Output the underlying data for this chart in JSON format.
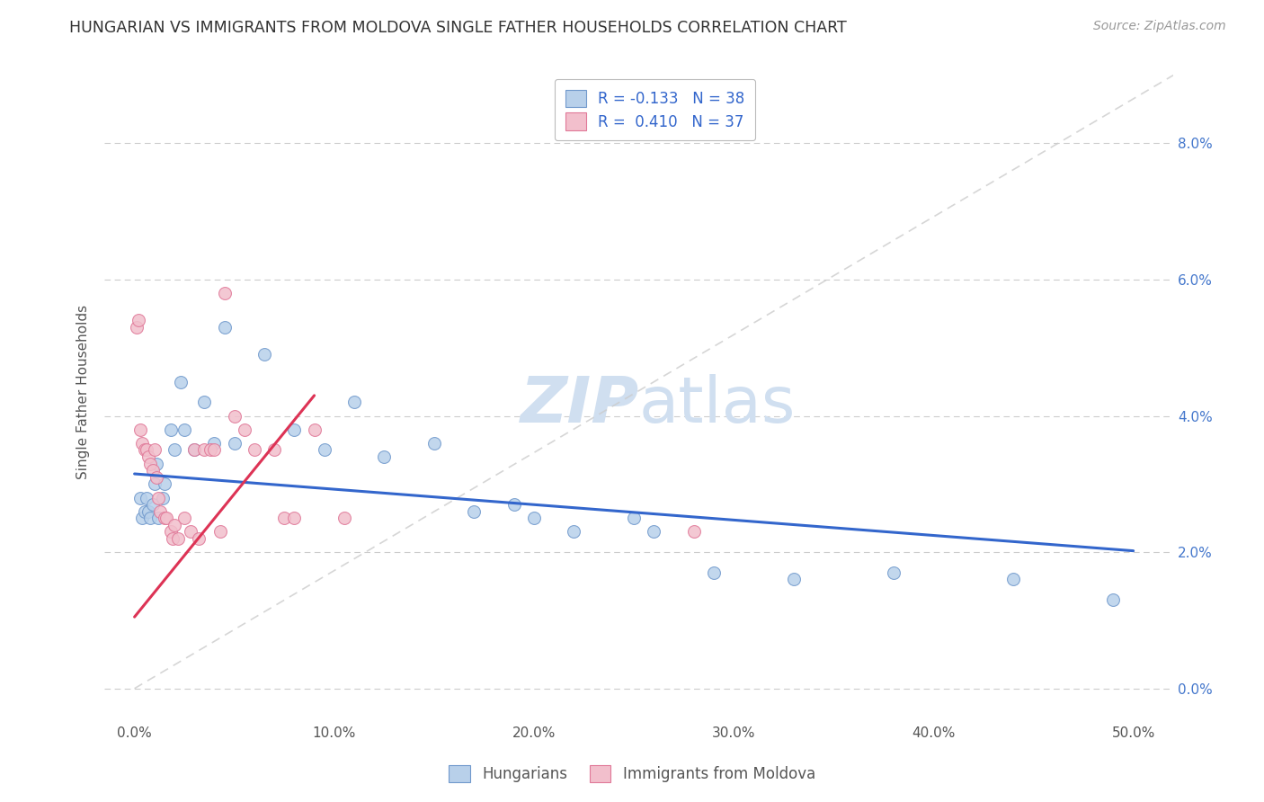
{
  "title": "HUNGARIAN VS IMMIGRANTS FROM MOLDOVA SINGLE FATHER HOUSEHOLDS CORRELATION CHART",
  "source": "Source: ZipAtlas.com",
  "ylabel": "Single Father Households",
  "xlabel_ticks": [
    "0.0%",
    "10.0%",
    "20.0%",
    "30.0%",
    "40.0%",
    "50.0%"
  ],
  "xlabel_values": [
    0.0,
    10.0,
    20.0,
    30.0,
    40.0,
    50.0
  ],
  "ylabel_ticks": [
    "0.0%",
    "2.0%",
    "4.0%",
    "6.0%",
    "8.0%"
  ],
  "ylabel_values": [
    0.0,
    2.0,
    4.0,
    6.0,
    8.0
  ],
  "xlim": [
    -1.5,
    52.0
  ],
  "ylim": [
    -0.5,
    9.2
  ],
  "hungarian_color": "#b8d0ea",
  "hungarian_edge_color": "#7099cc",
  "moldova_color": "#f2bfcc",
  "moldova_edge_color": "#e07898",
  "trendline_hungarian_color": "#3366cc",
  "trendline_moldova_color": "#dd3355",
  "diag_color": "#cccccc",
  "r_hungarian": -0.133,
  "n_hungarian": 38,
  "r_moldova": 0.41,
  "n_moldova": 37,
  "legend_label_hungarian": "Hungarians",
  "legend_label_moldova": "Immigrants from Moldova",
  "hun_trend_x0": 0.0,
  "hun_trend_y0": 3.15,
  "hun_trend_x1": 50.0,
  "hun_trend_y1": 2.02,
  "mol_trend_x0": 0.0,
  "mol_trend_y0": 1.05,
  "mol_trend_x1": 9.0,
  "mol_trend_y1": 4.3,
  "hungarian_x": [
    0.3,
    0.4,
    0.5,
    0.6,
    0.7,
    0.8,
    0.9,
    1.0,
    1.1,
    1.2,
    1.4,
    1.5,
    1.8,
    2.0,
    2.3,
    2.5,
    3.0,
    3.5,
    4.0,
    4.5,
    5.0,
    6.5,
    8.0,
    9.5,
    11.0,
    12.5,
    15.0,
    17.0,
    19.0,
    20.0,
    22.0,
    25.0,
    26.0,
    29.0,
    33.0,
    38.0,
    44.0,
    49.0
  ],
  "hungarian_y": [
    2.8,
    2.5,
    2.6,
    2.8,
    2.6,
    2.5,
    2.7,
    3.0,
    3.3,
    2.5,
    2.8,
    3.0,
    3.8,
    3.5,
    4.5,
    3.8,
    3.5,
    4.2,
    3.6,
    5.3,
    3.6,
    4.9,
    3.8,
    3.5,
    4.2,
    3.4,
    3.6,
    2.6,
    2.7,
    2.5,
    2.3,
    2.5,
    2.3,
    1.7,
    1.6,
    1.7,
    1.6,
    1.3
  ],
  "moldova_x": [
    0.1,
    0.2,
    0.3,
    0.4,
    0.5,
    0.6,
    0.7,
    0.8,
    0.9,
    1.0,
    1.1,
    1.2,
    1.3,
    1.5,
    1.6,
    1.8,
    1.9,
    2.0,
    2.2,
    2.5,
    2.8,
    3.0,
    3.2,
    3.5,
    3.8,
    4.0,
    4.3,
    4.5,
    5.0,
    5.5,
    6.0,
    7.0,
    7.5,
    8.0,
    9.0,
    10.5,
    28.0
  ],
  "moldova_y": [
    5.3,
    5.4,
    3.8,
    3.6,
    3.5,
    3.5,
    3.4,
    3.3,
    3.2,
    3.5,
    3.1,
    2.8,
    2.6,
    2.5,
    2.5,
    2.3,
    2.2,
    2.4,
    2.2,
    2.5,
    2.3,
    3.5,
    2.2,
    3.5,
    3.5,
    3.5,
    2.3,
    5.8,
    4.0,
    3.8,
    3.5,
    3.5,
    2.5,
    2.5,
    3.8,
    2.5,
    2.3
  ],
  "marker_size": 100,
  "watermark_color": "#d0dff0",
  "watermark_fontsize": 52
}
